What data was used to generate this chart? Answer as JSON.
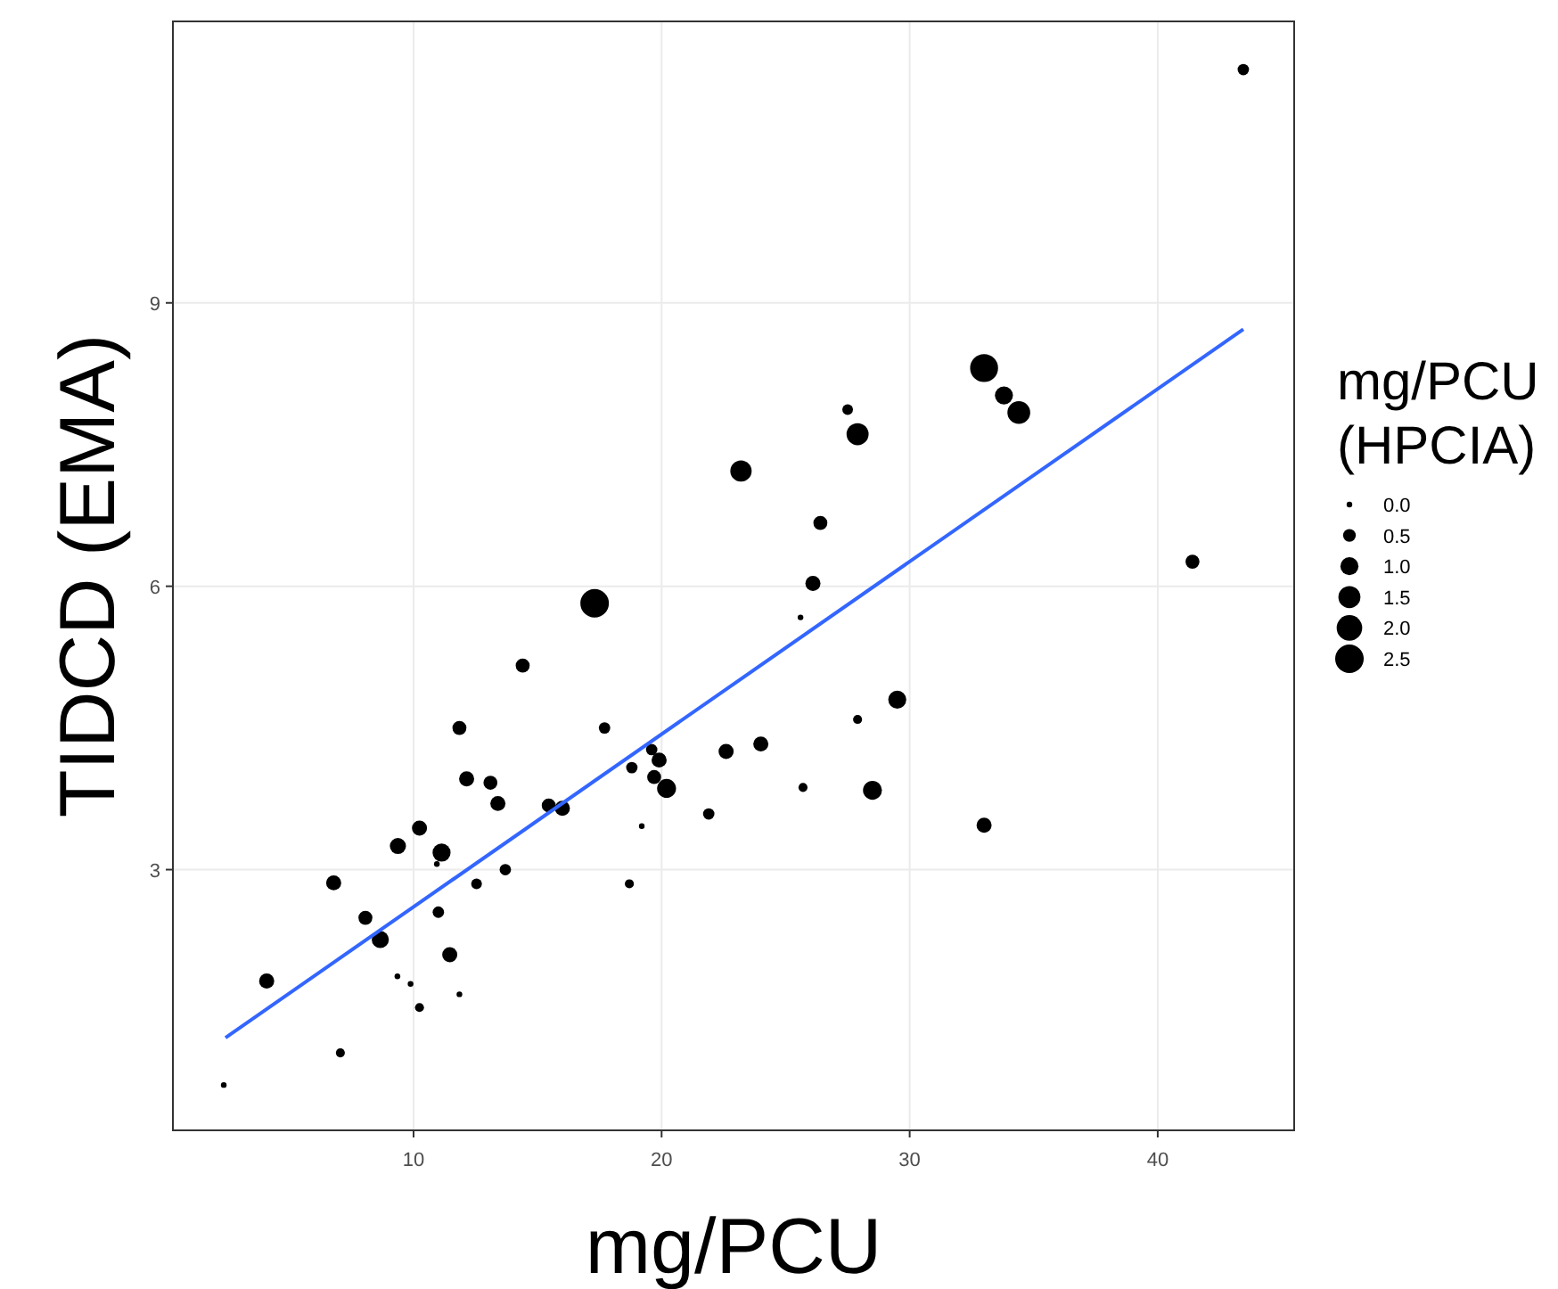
{
  "chart_data": {
    "type": "bubble",
    "xlabel": "mg/PCU",
    "ylabel": "TIDCD (EMA)",
    "legend_title": "mg/PCU (HPCIA)",
    "grid": true,
    "xlim": [
      0.3,
      45.5
    ],
    "xticks": [
      10,
      20,
      30,
      40
    ],
    "ylim": [
      0.24,
      11.98
    ],
    "yticks": [
      3,
      6,
      9
    ],
    "size_legend": [
      {
        "value": 0.1,
        "label": "0.0"
      },
      {
        "value": 0.5,
        "label": "0.5"
      },
      {
        "value": 1,
        "label": "1.0"
      },
      {
        "value": 1.5,
        "label": "1.5"
      },
      {
        "value": 2,
        "label": "2.0"
      },
      {
        "value": 2.5,
        "label": "2.5"
      }
    ],
    "series": [
      {
        "type": "bubble",
        "color": "#000000",
        "x": [
          14.4,
          11.85,
          12.14,
          13.1,
          13.4,
          15.45,
          16.0,
          10.24,
          9.37,
          11.13,
          10.94,
          13.7,
          12.54,
          6.78,
          8.06,
          11.0,
          8.66,
          11.46,
          4.08,
          9.35,
          9.88,
          11.85,
          10.24,
          7.05,
          2.35,
          17.3,
          26.1,
          25.6,
          29.5,
          27.9,
          17.7,
          19.6,
          19.9,
          24.0,
          22.6,
          18.8,
          19.7,
          20.2,
          25.7,
          28.5,
          21.9,
          19.2,
          18.7,
          33.0,
          33.0,
          33.8,
          34.4,
          27.5,
          27.9,
          23.2,
          26.4,
          41.4,
          43.45
        ],
        "values": [
          5.16,
          4.5,
          3.96,
          3.92,
          3.7,
          3.68,
          3.65,
          3.44,
          3.25,
          3.18,
          3.06,
          3.0,
          2.85,
          2.86,
          2.49,
          2.55,
          2.26,
          2.1,
          1.82,
          1.87,
          1.79,
          1.68,
          1.54,
          1.06,
          0.72,
          5.82,
          6.03,
          5.67,
          4.8,
          4.59,
          4.5,
          4.27,
          4.16,
          4.33,
          4.25,
          4.08,
          3.98,
          3.86,
          3.87,
          3.84,
          3.59,
          3.46,
          2.85,
          3.47,
          8.31,
          8.02,
          7.84,
          7.87,
          7.61,
          7.22,
          6.67,
          6.26,
          11.47
        ],
        "sizes": [
          0.6,
          0.6,
          0.7,
          0.6,
          0.7,
          0.6,
          0.7,
          0.7,
          0.8,
          1.0,
          0.1,
          0.4,
          0.35,
          0.7,
          0.6,
          0.4,
          0.9,
          0.7,
          0.7,
          0.1,
          0.1,
          0.1,
          0.25,
          0.25,
          0.1,
          2.5,
          0.7,
          0.1,
          1.0,
          0.25,
          0.4,
          0.4,
          0.7,
          0.7,
          0.7,
          0.4,
          0.6,
          1.1,
          0.25,
          1.1,
          0.4,
          0.1,
          0.25,
          0.7,
          2.4,
          1.0,
          1.6,
          0.35,
          1.5,
          1.4,
          0.6,
          0.6,
          0.4
        ]
      },
      {
        "type": "line",
        "color": "#3366ff",
        "x": [
          2.42,
          43.45
        ],
        "values": [
          1.22,
          8.72
        ]
      }
    ]
  }
}
